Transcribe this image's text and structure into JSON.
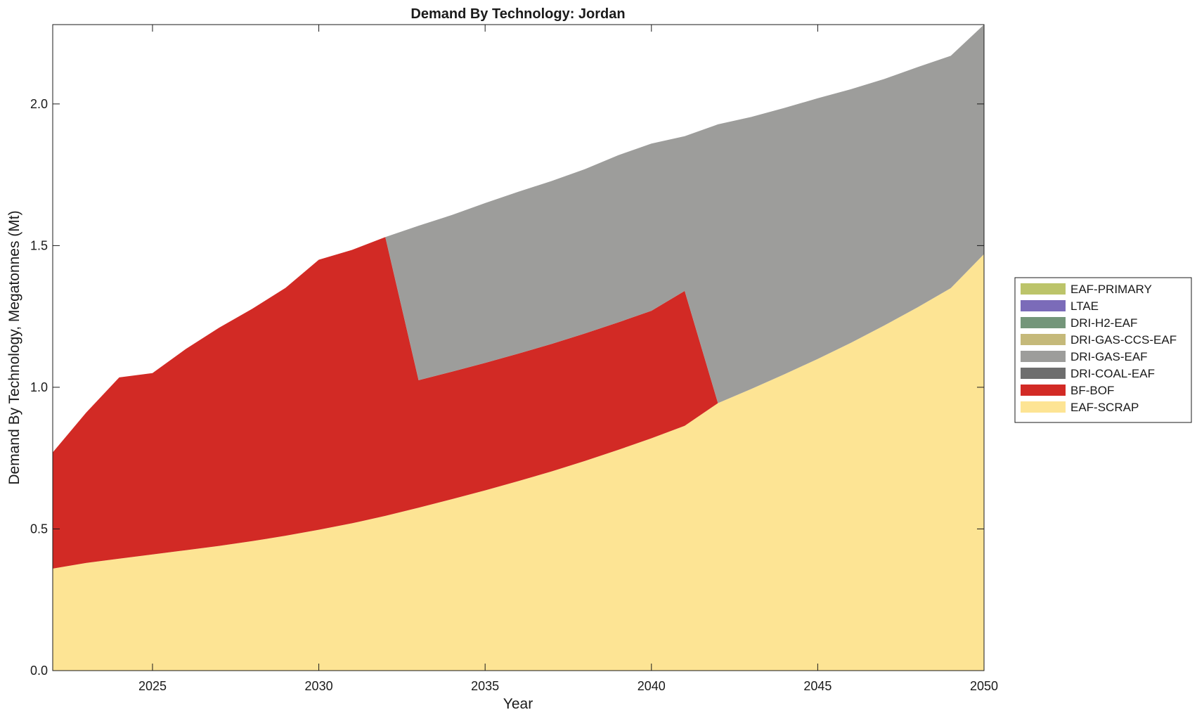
{
  "chart_data": {
    "type": "area",
    "stacked": true,
    "title": "Demand By Technology: Jordan",
    "xlabel": "Year",
    "ylabel": "Demand By Technology, Megatonnes (Mt)",
    "xlim": [
      2022,
      2050
    ],
    "ylim": [
      0,
      2.28
    ],
    "xticks": [
      2025,
      2030,
      2035,
      2040,
      2045,
      2050
    ],
    "yticks": [
      0.0,
      0.5,
      1.0,
      1.5,
      2.0
    ],
    "ytick_labels": [
      "0.0",
      "0.5",
      "1.0",
      "1.5",
      "2.0"
    ],
    "grid": false,
    "legend_position": "right",
    "x": [
      2022,
      2023,
      2024,
      2025,
      2026,
      2027,
      2028,
      2029,
      2030,
      2031,
      2032,
      2033,
      2034,
      2035,
      2036,
      2037,
      2038,
      2039,
      2040,
      2041,
      2042,
      2043,
      2044,
      2045,
      2046,
      2047,
      2048,
      2049,
      2050
    ],
    "series": [
      {
        "name": "EAF-SCRAP",
        "color": "#fde494",
        "values": [
          0.36,
          0.38,
          0.395,
          0.41,
          0.425,
          0.44,
          0.457,
          0.476,
          0.497,
          0.52,
          0.546,
          0.575,
          0.605,
          0.636,
          0.669,
          0.703,
          0.74,
          0.779,
          0.82,
          0.864,
          0.944,
          0.994,
          1.046,
          1.1,
          1.157,
          1.218,
          1.282,
          1.35,
          1.47
        ]
      },
      {
        "name": "BF-BOF",
        "color": "#d22a25",
        "values": [
          0.41,
          0.53,
          0.64,
          0.64,
          0.71,
          0.77,
          0.82,
          0.875,
          0.953,
          0.965,
          0.984,
          0.45,
          0.45,
          0.45,
          0.45,
          0.45,
          0.45,
          0.45,
          0.45,
          0.476,
          0,
          0,
          0,
          0,
          0,
          0,
          0,
          0,
          0
        ]
      },
      {
        "name": "DRI-COAL-EAF",
        "color": "#6e6e6e",
        "values": [
          0,
          0,
          0,
          0,
          0,
          0,
          0,
          0,
          0,
          0,
          0,
          0,
          0,
          0,
          0,
          0,
          0,
          0,
          0,
          0,
          0,
          0,
          0,
          0,
          0,
          0,
          0,
          0,
          0
        ]
      },
      {
        "name": "DRI-GAS-EAF",
        "color": "#9d9d9b",
        "values": [
          0,
          0,
          0,
          0,
          0,
          0,
          0,
          0,
          0,
          0,
          0,
          0.545,
          0.553,
          0.564,
          0.571,
          0.575,
          0.58,
          0.59,
          0.59,
          0.546,
          0.984,
          0.96,
          0.94,
          0.92,
          0.895,
          0.87,
          0.848,
          0.82,
          0.81
        ]
      },
      {
        "name": "DRI-GAS-CCS-EAF",
        "color": "#c5b97a",
        "values": [
          0,
          0,
          0,
          0,
          0,
          0,
          0,
          0,
          0,
          0,
          0,
          0,
          0,
          0,
          0,
          0,
          0,
          0,
          0,
          0,
          0,
          0,
          0,
          0,
          0,
          0,
          0,
          0,
          0
        ]
      },
      {
        "name": "DRI-H2-EAF",
        "color": "#74967a",
        "values": [
          0,
          0,
          0,
          0,
          0,
          0,
          0,
          0,
          0,
          0,
          0,
          0,
          0,
          0,
          0,
          0,
          0,
          0,
          0,
          0,
          0,
          0,
          0,
          0,
          0,
          0,
          0,
          0,
          0
        ]
      },
      {
        "name": "LTAE",
        "color": "#7b6bb9",
        "values": [
          0,
          0,
          0,
          0,
          0,
          0,
          0,
          0,
          0,
          0,
          0,
          0,
          0,
          0,
          0,
          0,
          0,
          0,
          0,
          0,
          0,
          0,
          0,
          0,
          0,
          0,
          0,
          0,
          0
        ]
      },
      {
        "name": "EAF-PRIMARY",
        "color": "#bcc46a",
        "values": [
          0,
          0,
          0,
          0,
          0,
          0,
          0,
          0,
          0,
          0,
          0,
          0,
          0,
          0,
          0,
          0,
          0,
          0,
          0,
          0,
          0,
          0,
          0,
          0,
          0,
          0,
          0,
          0,
          0
        ]
      }
    ],
    "legend_order": [
      "EAF-PRIMARY",
      "LTAE",
      "DRI-H2-EAF",
      "DRI-GAS-CCS-EAF",
      "DRI-GAS-EAF",
      "DRI-COAL-EAF",
      "BF-BOF",
      "EAF-SCRAP"
    ]
  }
}
